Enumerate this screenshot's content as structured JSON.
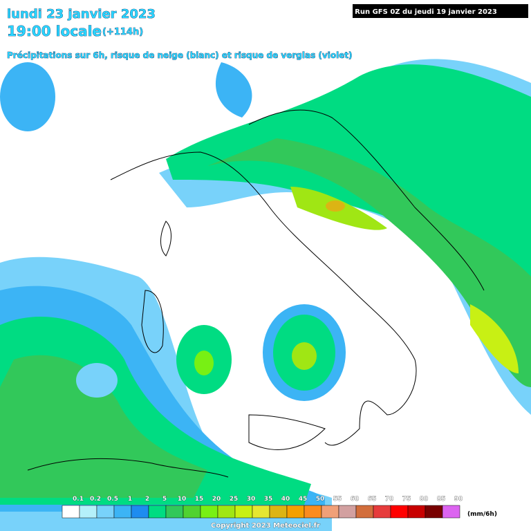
{
  "header": {
    "date": "lundi 23 janvier 2023",
    "time": "19:00 locale",
    "offset": "(+114h)",
    "description": "Précipitations sur 6h, risque de neige (blanc) et risque de verglas (violet)",
    "run": "Run GFS 0Z du jeudi 19 janvier 2023"
  },
  "legend": {
    "labels": [
      "0.1",
      "0.2",
      "0.5",
      "1",
      "2",
      "5",
      "10",
      "15",
      "20",
      "25",
      "30",
      "35",
      "40",
      "45",
      "50",
      "55",
      "60",
      "65",
      "70",
      "75",
      "80",
      "85",
      "90"
    ],
    "colors": [
      "#ffffff",
      "#b4f0fa",
      "#78d2fa",
      "#3cb4f5",
      "#1e8cf0",
      "#00dc82",
      "#32c85a",
      "#50d232",
      "#78f014",
      "#a0e614",
      "#c8f014",
      "#e6e632",
      "#dcb414",
      "#f5a000",
      "#fa8c1e",
      "#f0a078",
      "#d2a0a0",
      "#d26e3c",
      "#e63c3c",
      "#ff0000",
      "#c80000",
      "#780000",
      "#dc64f0"
    ],
    "unit": "(mm/6h)"
  },
  "footer": {
    "copyright": "Copyright 2023 Meteociel.fr"
  }
}
